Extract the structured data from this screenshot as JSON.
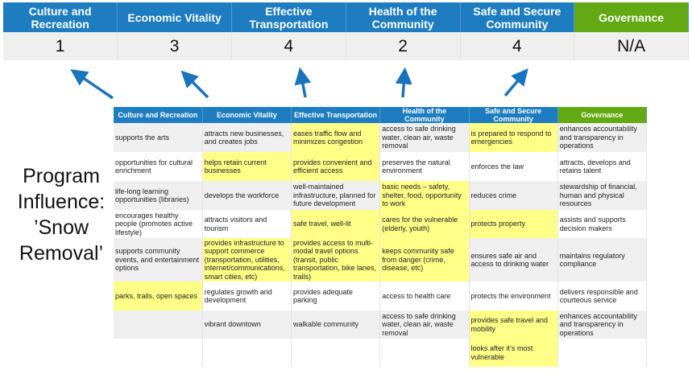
{
  "scores": {
    "headers": [
      "Culture and Recreation",
      "Economic Vitality",
      "Effective Transportation",
      "Health of the Community",
      "Safe and Secure Community",
      "Governance"
    ],
    "values": [
      "1",
      "3",
      "4",
      "2",
      "4",
      "N/A"
    ]
  },
  "program_label": "Program Influence: ’Snow Removal’",
  "colors": {
    "header_blue": "#1e7dc1",
    "governance_green": "#63a913",
    "highlight_yellow": "#ffff88",
    "arrow_blue": "#1a73bd"
  },
  "matrix": {
    "headers": [
      "Culture and Recreation",
      "Economic Vitality",
      "Effective Transportation",
      "Health of the Community",
      "Safe and Secure Community",
      "Governance"
    ],
    "rows": [
      {
        "cells": [
          "supports the arts",
          "attracts new businesses, and creates jobs",
          "eases traffic flow and minimizes congestion",
          "access to safe drinking water, clean air, waste removal",
          "is prepared to respond to emergencies",
          "enhances accountability and transparency in operations"
        ],
        "highlighted": [
          false,
          false,
          true,
          false,
          true,
          false
        ]
      },
      {
        "cells": [
          "opportunities for cultural enrichment",
          "helps retain current businesses",
          "provides convenient and efficient access",
          "preserves the natural environment",
          "enforces the law",
          "attracts, develops and retains talent"
        ],
        "highlighted": [
          false,
          true,
          true,
          false,
          false,
          false
        ]
      },
      {
        "cells": [
          "life-long learning opportunities (libraries)",
          "develops the workforce",
          "well-maintained infrastructure, planned for future development",
          "basic needs – safety, shelter, food, opportunity to work",
          "reduces crime",
          "stewardship of financial, human and physical resources"
        ],
        "highlighted": [
          false,
          false,
          false,
          true,
          false,
          false
        ]
      },
      {
        "cells": [
          "encourages healthy people (promotes active lifestyle)",
          "attracts visitors and tourism",
          "safe travel, well-lit",
          "cares for the vulnerable (elderly, youth)",
          "protects property",
          "assists and supports decision makers"
        ],
        "highlighted": [
          false,
          false,
          true,
          true,
          true,
          false
        ]
      },
      {
        "cells": [
          "supports community events, and entertainment options",
          "provides infrastructure to support commerce (transportation, utilities, internet/communications, smart cities, etc)",
          "provides access to multi-modal travel options (transit, public transportation, bike lanes, trails)",
          "keeps community safe from danger (crime, disease, etc)",
          "ensures safe air and access to drinking water",
          "maintains regulatory compliance"
        ],
        "highlighted": [
          false,
          true,
          true,
          true,
          false,
          false
        ]
      },
      {
        "cells": [
          "parks, trails, open spaces",
          "regulates growth and development",
          "provides adequate parking",
          "access to health care",
          "protects the environment",
          "delivers responsible and courteous service"
        ],
        "highlighted": [
          true,
          false,
          false,
          false,
          false,
          false
        ]
      },
      {
        "cells": [
          "",
          "vibrant downtown",
          "walkable community",
          "access to safe drinking water, clean air, waste removal",
          "provides safe travel and mobility",
          "enhances accountability and transparency in operations"
        ],
        "highlighted": [
          false,
          false,
          false,
          false,
          true,
          false
        ]
      },
      {
        "cells": [
          "",
          "",
          "",
          "",
          "looks after it’s most vulnerable",
          ""
        ],
        "highlighted": [
          false,
          false,
          false,
          false,
          true,
          false
        ]
      }
    ]
  }
}
